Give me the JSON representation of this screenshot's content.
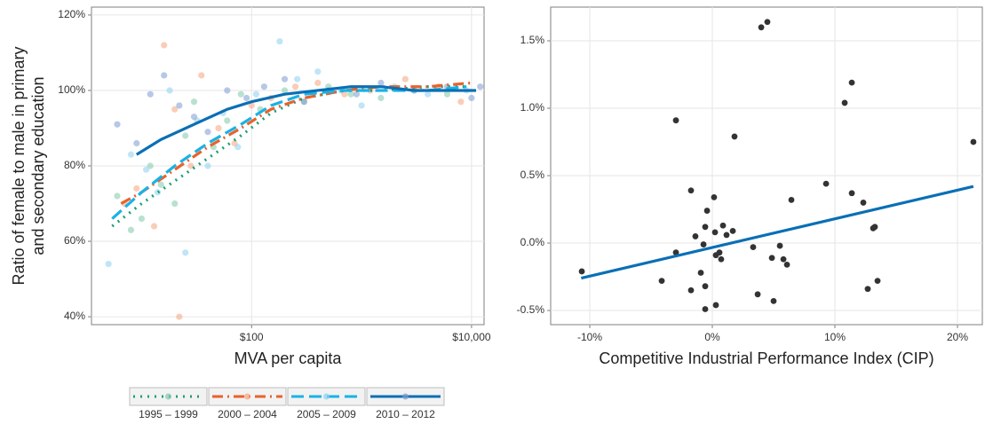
{
  "chart_data": [
    {
      "type": "scatter",
      "xscale": "log",
      "grid": true,
      "legend": "bottom",
      "xlabel": "MVA per capita",
      "ylabel": [
        "Ratio of female to male in primary",
        "and secondary education"
      ],
      "xlim": [
        3.5,
        13000
      ],
      "ylim": [
        37.9,
        122.1
      ],
      "xticks": [
        {
          "value": 100,
          "label": "$100"
        },
        {
          "value": 10000,
          "label": "$10,000"
        }
      ],
      "yticks": [
        {
          "value": 40,
          "label": "40%"
        },
        {
          "value": 60,
          "label": "60%"
        },
        {
          "value": 80,
          "label": "80%"
        },
        {
          "value": 100,
          "label": "100%"
        },
        {
          "value": 120,
          "label": "120%"
        }
      ],
      "series": [
        {
          "name": "1995 – 1999",
          "color": "#1a9e77",
          "point_color": "#7fc8a9",
          "line_style": "dotted",
          "x": [
            6,
            8,
            10,
            12,
            15,
            20,
            25,
            30,
            45,
            60,
            80,
            120,
            200,
            300,
            500,
            800,
            1500,
            3000,
            6000
          ],
          "values": [
            72,
            63,
            66,
            80,
            75,
            70,
            88,
            97,
            85,
            92,
            99,
            95,
            100,
            97,
            101,
            99,
            98,
            100,
            99
          ],
          "trend": {
            "x": [
              5.4,
              10,
              20,
              40,
              80,
              150,
              300,
              700,
              1500,
              4000,
              9000
            ],
            "values": [
              64,
              70,
              76,
              82,
              88,
              94,
              98,
              100,
              100,
              101,
              101
            ]
          }
        },
        {
          "name": "2000 – 2004",
          "color": "#e8622c",
          "point_color": "#f5a47e",
          "line_style": "dashdot",
          "x": [
            7,
            9,
            13,
            16,
            20,
            22,
            28,
            35,
            50,
            70,
            100,
            150,
            250,
            400,
            700,
            1200,
            2500,
            5000,
            8000
          ],
          "values": [
            70,
            74,
            64,
            112,
            95,
            40,
            80,
            104,
            90,
            86,
            96,
            98,
            101,
            102,
            99,
            100,
            103,
            101,
            97
          ],
          "trend": {
            "x": [
              6.5,
              10,
              20,
              40,
              80,
              150,
              300,
              700,
              1500,
              4000,
              10000
            ],
            "values": [
              70,
              73,
              79,
              85,
              90,
              95,
              98,
              100,
              101,
              101,
              102
            ]
          }
        },
        {
          "name": "2005 – 2009",
          "color": "#19b2e6",
          "point_color": "#8ad0f0",
          "line_style": "dashed",
          "x": [
            5,
            8,
            11,
            14,
            18,
            25,
            32,
            40,
            55,
            75,
            110,
            180,
            260,
            400,
            650,
            1000,
            2000,
            4000,
            9000
          ],
          "values": [
            54,
            83,
            79,
            73,
            100,
            57,
            92,
            80,
            94,
            85,
            99,
            113,
            103,
            105,
            100,
            96,
            101,
            99,
            100
          ],
          "trend": {
            "x": [
              5.4,
              10,
              20,
              40,
              80,
              150,
              300,
              700,
              1500,
              4000,
              9000
            ],
            "values": [
              66,
              73,
              80,
              86,
              91,
              96,
              99,
              100,
              100,
              100,
              101
            ]
          }
        },
        {
          "name": "2010 – 2012",
          "color": "#0a6fb5",
          "point_color": "#7b9bd1",
          "line_style": "solid",
          "x": [
            6,
            9,
            12,
            16,
            22,
            30,
            40,
            60,
            90,
            130,
            200,
            300,
            500,
            900,
            1500,
            3000,
            6000,
            10000,
            12000
          ],
          "values": [
            91,
            86,
            99,
            104,
            96,
            93,
            89,
            100,
            98,
            101,
            103,
            97,
            100,
            99,
            102,
            100,
            101,
            98,
            101
          ],
          "trend": {
            "x": [
              9,
              15,
              30,
              60,
              100,
              200,
              400,
              800,
              1500,
              3000,
              6000,
              11000
            ],
            "values": [
              83,
              87,
              91,
              95,
              97,
              99,
              100,
              101,
              101,
              100,
              100,
              100
            ]
          }
        }
      ]
    },
    {
      "type": "scatter",
      "grid": true,
      "xlabel": "Competitive Industrial Performance Index (CIP)",
      "xlim": [
        -13.19,
        22.03
      ],
      "ylim": [
        -0.605,
        1.75
      ],
      "xticks": [
        {
          "value": -10,
          "label": "-10%"
        },
        {
          "value": 0,
          "label": "0%"
        },
        {
          "value": 10,
          "label": "10%"
        },
        {
          "value": 20,
          "label": "20%"
        }
      ],
      "yticks": [
        {
          "value": -0.5,
          "label": "-0.5%"
        },
        {
          "value": 0,
          "label": "0.0%"
        },
        {
          "value": 0.5,
          "label": "0.5%"
        },
        {
          "value": 1,
          "label": "1.0%"
        },
        {
          "value": 1.5,
          "label": "1.5%"
        }
      ],
      "series": [
        {
          "color": "#333333",
          "point_color": "#333333",
          "x": [
            -10.65,
            -4.13,
            -2.97,
            -2.97,
            -1.74,
            -1.74,
            -1.38,
            -0.94,
            -0.72,
            -0.58,
            -0.43,
            -0.58,
            -0.58,
            0.14,
            0.22,
            0.29,
            0.29,
            0.58,
            0.72,
            0.87,
            1.16,
            1.67,
            1.81,
            3.33,
            3.7,
            3.99,
            4.49,
            4.86,
            5.0,
            5.51,
            5.8,
            6.09,
            6.45,
            9.28,
            10.8,
            11.38,
            11.38,
            12.32,
            12.68,
            13.12,
            13.26,
            13.48,
            21.3
          ],
          "values": [
            -0.21,
            -0.28,
            0.91,
            -0.07,
            0.39,
            -0.35,
            0.05,
            -0.22,
            -0.01,
            0.12,
            0.24,
            -0.32,
            -0.49,
            0.34,
            0.08,
            -0.09,
            -0.46,
            -0.07,
            -0.12,
            0.13,
            0.06,
            0.09,
            0.79,
            -0.03,
            -0.38,
            1.6,
            1.64,
            -0.11,
            -0.43,
            -0.02,
            -0.12,
            -0.16,
            0.32,
            0.44,
            1.04,
            1.19,
            0.37,
            0.3,
            -0.34,
            0.11,
            0.12,
            -0.28,
            0.75
          ],
          "trend": {
            "color": "#0a6fb5",
            "x": [
              -10.7,
              21.3
            ],
            "values": [
              -0.26,
              0.42
            ]
          }
        }
      ]
    }
  ]
}
